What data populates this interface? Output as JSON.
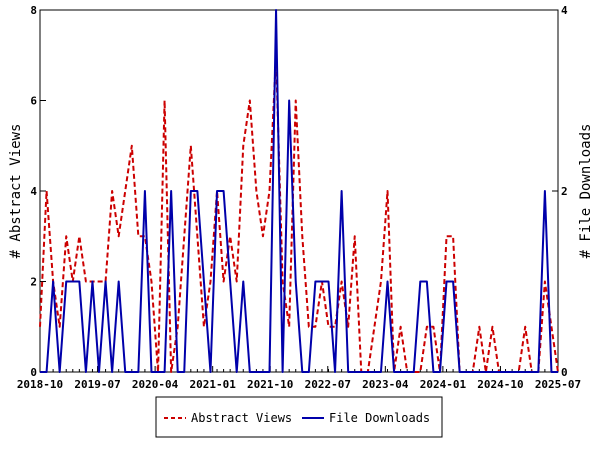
{
  "chart_data": {
    "type": "line",
    "x_tick_labels": [
      "2018-10",
      "2019-07",
      "2020-04",
      "2021-01",
      "2021-10",
      "2022-07",
      "2023-04",
      "2024-01",
      "2024-10",
      "2025-07"
    ],
    "ylabel_left": "# Abstract Views",
    "ylabel_right": "# File Downloads",
    "ylim_left": [
      0,
      8
    ],
    "ylim_right": [
      0,
      4
    ],
    "yticks_left": [
      "0",
      "2",
      "4",
      "6",
      "8"
    ],
    "yticks_right": [
      "0",
      "2",
      "4"
    ],
    "legend_position": "bottom",
    "series": [
      {
        "name": "Abstract Views",
        "axis": "left",
        "color": "#cc0000",
        "style": "dashed",
        "values": [
          1,
          4,
          2,
          1,
          3,
          2,
          3,
          2,
          2,
          2,
          2,
          4,
          3,
          4,
          5,
          3,
          3,
          2,
          0,
          6,
          0,
          1,
          3,
          5,
          3,
          1,
          2,
          4,
          2,
          3,
          2,
          5,
          6,
          4,
          3,
          4,
          7,
          2,
          1,
          6,
          3,
          1,
          1,
          2,
          1,
          1,
          2,
          1,
          3,
          0,
          0,
          1,
          2,
          4,
          0,
          1,
          0,
          0,
          0,
          1,
          1,
          0,
          3,
          3,
          0,
          0,
          0,
          1,
          0,
          1,
          0,
          0,
          0,
          0,
          1,
          0,
          0,
          2,
          1,
          0
        ]
      },
      {
        "name": "File Downloads",
        "axis": "right",
        "color": "#0000aa",
        "style": "solid",
        "values": [
          0,
          0,
          1,
          0,
          1,
          1,
          1,
          0,
          1,
          0,
          1,
          0,
          1,
          0,
          0,
          0,
          2,
          0,
          0,
          0,
          2,
          0,
          0,
          2,
          2,
          1,
          0,
          2,
          2,
          1,
          0,
          1,
          0,
          0,
          0,
          0,
          4,
          0,
          3,
          1,
          0,
          0,
          1,
          1,
          1,
          0,
          2,
          0,
          0,
          0,
          0,
          0,
          0,
          1,
          0,
          0,
          0,
          0,
          1,
          1,
          0,
          0,
          1,
          1,
          0,
          0,
          0,
          0,
          0,
          0,
          0,
          0,
          0,
          0,
          0,
          0,
          0,
          2,
          0,
          0
        ]
      }
    ]
  }
}
